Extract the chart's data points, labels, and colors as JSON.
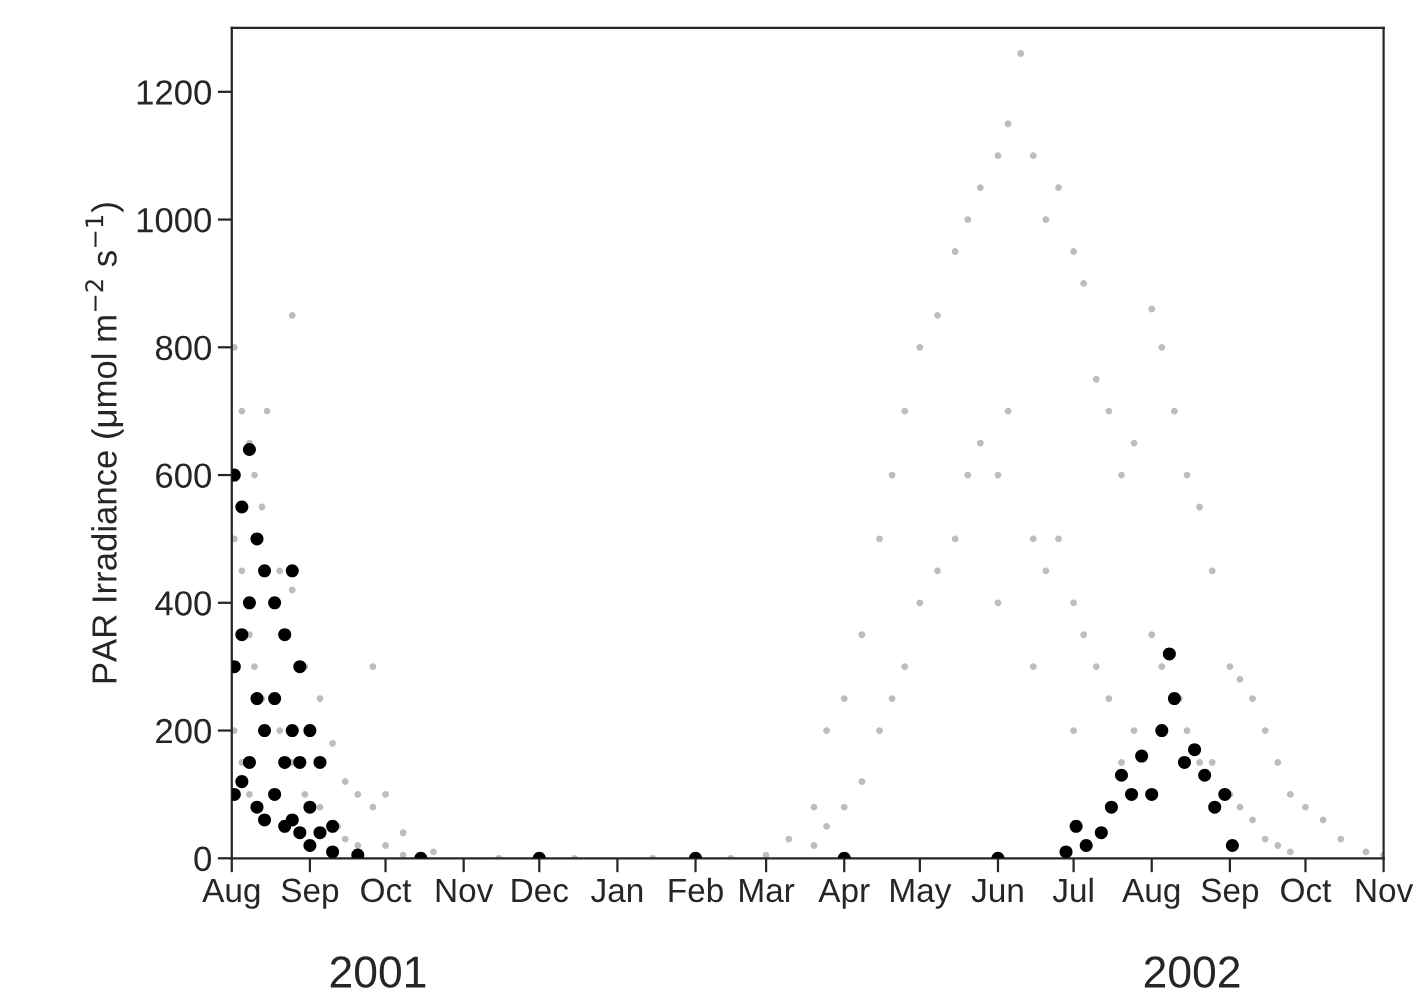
{
  "chart_data": {
    "type": "scatter",
    "ylabel": "PAR Irradiance (μmol m$^{−2}$ s$^{−1}$)",
    "xlim": [
      "2001-08-01",
      "2002-11-01"
    ],
    "xticks": [
      {
        "value": "2001-08-01",
        "label": "Aug"
      },
      {
        "value": "2001-09-01",
        "label": "Sep"
      },
      {
        "value": "2001-10-01",
        "label": "Oct"
      },
      {
        "value": "2001-11-01",
        "label": "Nov"
      },
      {
        "value": "2001-12-01",
        "label": "Dec"
      },
      {
        "value": "2002-01-01",
        "label": "Jan"
      },
      {
        "value": "2002-02-01",
        "label": "Feb"
      },
      {
        "value": "2002-03-01",
        "label": "Mar"
      },
      {
        "value": "2002-04-01",
        "label": "Apr"
      },
      {
        "value": "2002-05-01",
        "label": "May"
      },
      {
        "value": "2002-06-01",
        "label": "Jun"
      },
      {
        "value": "2002-07-01",
        "label": "Jul"
      },
      {
        "value": "2002-08-01",
        "label": "Aug"
      },
      {
        "value": "2002-09-01",
        "label": "Sep"
      },
      {
        "value": "2002-10-01",
        "label": "Oct"
      },
      {
        "value": "2002-11-01",
        "label": "Nov"
      }
    ],
    "x2lim": [
      "2001-08-01",
      "2002-11-01"
    ],
    "x2ticks": [
      {
        "value": "2001-09-28",
        "label": "2001"
      },
      {
        "value": "2002-08-17",
        "label": "2002"
      }
    ],
    "ylim": [
      0,
      1300
    ],
    "yticks": [
      0,
      200,
      400,
      600,
      800,
      1000,
      1200
    ],
    "grid": false,
    "legend": false,
    "marker": "circle",
    "series": [
      {
        "color": "#bdbdbd",
        "x": [
          "2001-08-02",
          "2001-08-02",
          "2001-08-02",
          "2001-08-05",
          "2001-08-05",
          "2001-08-05",
          "2001-08-08",
          "2001-08-08",
          "2001-08-08",
          "2001-08-10",
          "2001-08-10",
          "2001-08-13",
          "2001-08-13",
          "2001-08-15",
          "2001-08-20",
          "2001-08-20",
          "2001-08-25",
          "2001-08-25",
          "2001-08-25",
          "2001-08-30",
          "2001-08-30",
          "2001-09-05",
          "2001-09-05",
          "2001-09-10",
          "2001-09-12",
          "2001-09-15",
          "2001-09-15",
          "2001-09-20",
          "2001-09-20",
          "2001-09-26",
          "2001-09-26",
          "2001-10-01",
          "2001-10-01",
          "2001-10-08",
          "2001-10-08",
          "2001-10-20",
          "2001-11-15",
          "2001-12-15",
          "2002-01-15",
          "2002-02-15",
          "2002-03-01",
          "2002-03-10",
          "2002-03-20",
          "2002-03-20",
          "2002-03-25",
          "2002-03-25",
          "2002-04-01",
          "2002-04-01",
          "2002-04-08",
          "2002-04-08",
          "2002-04-15",
          "2002-04-15",
          "2002-04-20",
          "2002-04-20",
          "2002-04-25",
          "2002-04-25",
          "2002-05-01",
          "2002-05-01",
          "2002-05-08",
          "2002-05-08",
          "2002-05-15",
          "2002-05-15",
          "2002-05-20",
          "2002-05-20",
          "2002-05-25",
          "2002-05-25",
          "2002-06-01",
          "2002-06-01",
          "2002-06-01",
          "2002-06-05",
          "2002-06-05",
          "2002-06-10",
          "2002-06-15",
          "2002-06-15",
          "2002-06-15",
          "2002-06-20",
          "2002-06-20",
          "2002-06-25",
          "2002-06-25",
          "2002-07-01",
          "2002-07-01",
          "2002-07-01",
          "2002-07-05",
          "2002-07-05",
          "2002-07-10",
          "2002-07-10",
          "2002-07-15",
          "2002-07-15",
          "2002-07-20",
          "2002-07-20",
          "2002-07-25",
          "2002-07-25",
          "2002-08-01",
          "2002-08-01",
          "2002-08-05",
          "2002-08-05",
          "2002-08-10",
          "2002-08-12",
          "2002-08-15",
          "2002-08-15",
          "2002-08-20",
          "2002-08-20",
          "2002-08-25",
          "2002-08-25",
          "2002-09-01",
          "2002-09-01",
          "2002-09-05",
          "2002-09-05",
          "2002-09-10",
          "2002-09-10",
          "2002-09-15",
          "2002-09-15",
          "2002-09-20",
          "2002-09-20",
          "2002-09-25",
          "2002-09-25",
          "2002-10-01",
          "2002-10-08",
          "2002-10-15",
          "2002-10-25",
          "2002-11-01"
        ],
        "values": [
          800,
          500,
          200,
          700,
          450,
          150,
          650,
          350,
          100,
          600,
          300,
          550,
          250,
          700,
          450,
          200,
          850,
          420,
          150,
          300,
          100,
          250,
          80,
          180,
          50,
          120,
          30,
          100,
          20,
          300,
          80,
          100,
          20,
          40,
          5,
          10,
          0,
          0,
          0,
          0,
          5,
          30,
          80,
          20,
          200,
          50,
          250,
          80,
          350,
          120,
          500,
          200,
          600,
          250,
          700,
          300,
          800,
          400,
          850,
          450,
          950,
          500,
          1000,
          600,
          1050,
          650,
          1100,
          600,
          400,
          1150,
          700,
          1260,
          1100,
          500,
          300,
          1000,
          450,
          1050,
          500,
          950,
          400,
          200,
          900,
          350,
          750,
          300,
          700,
          250,
          600,
          150,
          650,
          200,
          860,
          350,
          800,
          300,
          700,
          250,
          600,
          200,
          550,
          150,
          450,
          150,
          300,
          100,
          280,
          80,
          250,
          60,
          200,
          30,
          150,
          20,
          100,
          10,
          80,
          60,
          30,
          10,
          5
        ]
      },
      {
        "color": "#000000",
        "x": [
          "2001-08-02",
          "2001-08-02",
          "2001-08-02",
          "2001-08-05",
          "2001-08-05",
          "2001-08-05",
          "2001-08-08",
          "2001-08-08",
          "2001-08-08",
          "2001-08-11",
          "2001-08-11",
          "2001-08-11",
          "2001-08-14",
          "2001-08-14",
          "2001-08-14",
          "2001-08-18",
          "2001-08-18",
          "2001-08-18",
          "2001-08-22",
          "2001-08-22",
          "2001-08-22",
          "2001-08-25",
          "2001-08-25",
          "2001-08-25",
          "2001-08-28",
          "2001-08-28",
          "2001-08-28",
          "2001-09-01",
          "2001-09-01",
          "2001-09-01",
          "2001-09-05",
          "2001-09-05",
          "2001-09-10",
          "2001-09-10",
          "2001-09-20",
          "2001-10-15",
          "2001-12-01",
          "2002-02-01",
          "2002-04-01",
          "2002-06-01",
          "2002-06-28",
          "2002-07-02",
          "2002-07-06",
          "2002-07-12",
          "2002-07-16",
          "2002-07-20",
          "2002-07-24",
          "2002-07-28",
          "2002-08-01",
          "2002-08-05",
          "2002-08-08",
          "2002-08-10",
          "2002-08-14",
          "2002-08-18",
          "2002-08-22",
          "2002-08-26",
          "2002-08-30",
          "2002-09-02"
        ],
        "values": [
          600,
          300,
          100,
          550,
          350,
          120,
          640,
          400,
          150,
          500,
          250,
          80,
          450,
          200,
          60,
          400,
          250,
          100,
          350,
          150,
          50,
          450,
          200,
          60,
          300,
          150,
          40,
          200,
          80,
          20,
          150,
          40,
          50,
          10,
          5,
          0,
          0,
          0,
          0,
          0,
          10,
          50,
          20,
          40,
          80,
          130,
          100,
          160,
          100,
          200,
          320,
          250,
          150,
          170,
          130,
          80,
          100,
          20
        ]
      }
    ]
  }
}
